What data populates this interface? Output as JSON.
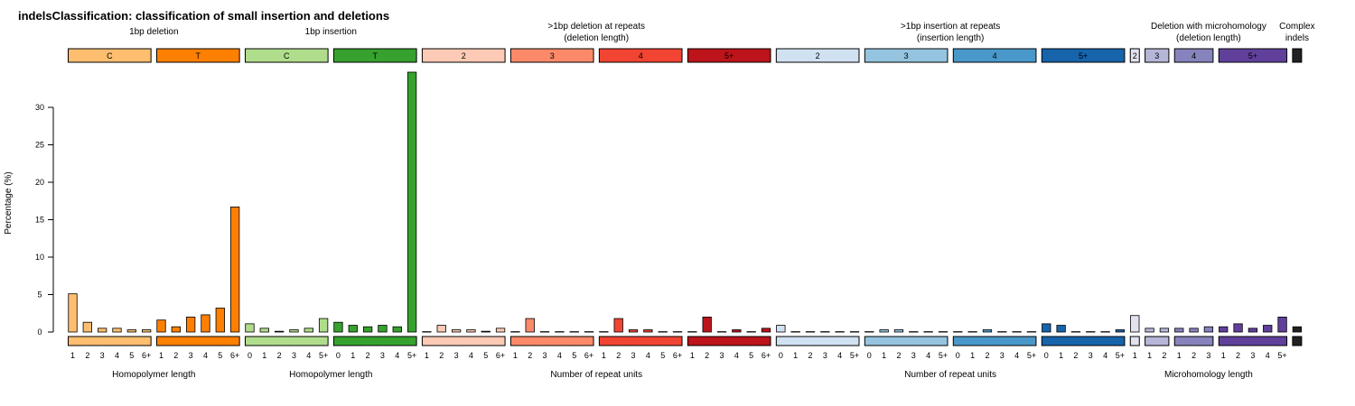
{
  "chart_data": {
    "type": "bar",
    "title": "indelsClassification: classification of small insertion and deletions",
    "ylabel": "Percentage (%)",
    "ylim": [
      0,
      35
    ],
    "yticks": [
      0,
      5,
      10,
      15,
      20,
      25,
      30
    ],
    "grid": false,
    "legend": "none",
    "top_groups": [
      {
        "label": [
          "1bp deletion"
        ],
        "start": 0,
        "end": 11
      },
      {
        "label": [
          "1bp insertion"
        ],
        "start": 12,
        "end": 23
      },
      {
        "label": [
          ">1bp deletion at repeats",
          "(deletion length)"
        ],
        "start": 24,
        "end": 47
      },
      {
        "label": [
          ">1bp insertion at repeats",
          "(insertion length)"
        ],
        "start": 48,
        "end": 71
      },
      {
        "label": [
          "Deletion with microhomology",
          "(deletion length)"
        ],
        "start": 72,
        "end": 82
      },
      {
        "label": [
          "Complex",
          "indels"
        ],
        "start": 83,
        "end": 83
      }
    ],
    "bottom_groups": [
      {
        "label": "Homopolymer length",
        "start": 0,
        "end": 11
      },
      {
        "label": "Homopolymer length",
        "start": 12,
        "end": 23
      },
      {
        "label": "Number of repeat units",
        "start": 24,
        "end": 47
      },
      {
        "label": "Number of repeat units",
        "start": 48,
        "end": 71
      },
      {
        "label": "Microhomology length",
        "start": 72,
        "end": 82
      }
    ],
    "subgroups": [
      {
        "label": "C",
        "color": "#FDBE6F",
        "ticks": [
          "1",
          "2",
          "3",
          "4",
          "5",
          "6+"
        ],
        "values": [
          5.1,
          1.3,
          0.5,
          0.5,
          0.3,
          0.3
        ]
      },
      {
        "label": "T",
        "color": "#FF8001",
        "ticks": [
          "1",
          "2",
          "3",
          "4",
          "5",
          "6+"
        ],
        "values": [
          1.6,
          0.7,
          2.0,
          2.3,
          3.2,
          16.7
        ]
      },
      {
        "label": "C",
        "color": "#B0DD8B",
        "ticks": [
          "0",
          "1",
          "2",
          "3",
          "4",
          "5+"
        ],
        "values": [
          1.1,
          0.5,
          0.1,
          0.3,
          0.5,
          1.8
        ]
      },
      {
        "label": "T",
        "color": "#36A12E",
        "ticks": [
          "0",
          "1",
          "2",
          "3",
          "4",
          "5+"
        ],
        "values": [
          1.3,
          0.9,
          0.7,
          0.9,
          0.7,
          34.7
        ]
      },
      {
        "label": "2",
        "color": "#FDCAB5",
        "ticks": [
          "1",
          "2",
          "3",
          "4",
          "5",
          "6+"
        ],
        "values": [
          0.05,
          0.9,
          0.3,
          0.3,
          0.1,
          0.5
        ]
      },
      {
        "label": "3",
        "color": "#FC8A6A",
        "ticks": [
          "1",
          "2",
          "3",
          "4",
          "5",
          "6+"
        ],
        "values": [
          0.05,
          1.8,
          0.05,
          0.05,
          0.05,
          0.05
        ]
      },
      {
        "label": "4",
        "color": "#F14432",
        "ticks": [
          "1",
          "2",
          "3",
          "4",
          "5",
          "6+"
        ],
        "values": [
          0.05,
          1.8,
          0.3,
          0.3,
          0.05,
          0.05
        ]
      },
      {
        "label": "5+",
        "color": "#BC141A",
        "ticks": [
          "1",
          "2",
          "3",
          "4",
          "5",
          "6+"
        ],
        "values": [
          0.05,
          2.0,
          0.05,
          0.3,
          0.05,
          0.5
        ]
      },
      {
        "label": "2",
        "color": "#D0E1F2",
        "ticks": [
          "0",
          "1",
          "2",
          "3",
          "4",
          "5+"
        ],
        "values": [
          0.9,
          0.05,
          0.05,
          0.05,
          0.05,
          0.05
        ]
      },
      {
        "label": "3",
        "color": "#94C4DF",
        "ticks": [
          "0",
          "1",
          "2",
          "3",
          "4",
          "5+"
        ],
        "values": [
          0.05,
          0.3,
          0.3,
          0.05,
          0.05,
          0.05
        ]
      },
      {
        "label": "4",
        "color": "#4A98C9",
        "ticks": [
          "0",
          "1",
          "2",
          "3",
          "4",
          "5+"
        ],
        "values": [
          0.05,
          0.05,
          0.3,
          0.05,
          0.05,
          0.05
        ]
      },
      {
        "label": "5+",
        "color": "#1764AB",
        "ticks": [
          "0",
          "1",
          "2",
          "3",
          "4",
          "5+"
        ],
        "values": [
          1.1,
          0.9,
          0.05,
          0.05,
          0.05,
          0.3
        ]
      },
      {
        "label": "2",
        "color": "#E2E2EF",
        "ticks": [
          "1"
        ],
        "values": [
          2.2
        ]
      },
      {
        "label": "3",
        "color": "#B6B6D8",
        "ticks": [
          "1",
          "2"
        ],
        "values": [
          0.5,
          0.5
        ]
      },
      {
        "label": "4",
        "color": "#8683BD",
        "ticks": [
          "1",
          "2",
          "3"
        ],
        "values": [
          0.5,
          0.5,
          0.7
        ]
      },
      {
        "label": "5+",
        "color": "#61409B",
        "ticks": [
          "1",
          "2",
          "3",
          "4",
          "5+"
        ],
        "values": [
          0.7,
          1.1,
          0.5,
          0.9,
          2.0
        ]
      },
      {
        "label": "",
        "color": "#222222",
        "ticks": [
          ""
        ],
        "values": [
          0.7
        ]
      }
    ]
  }
}
